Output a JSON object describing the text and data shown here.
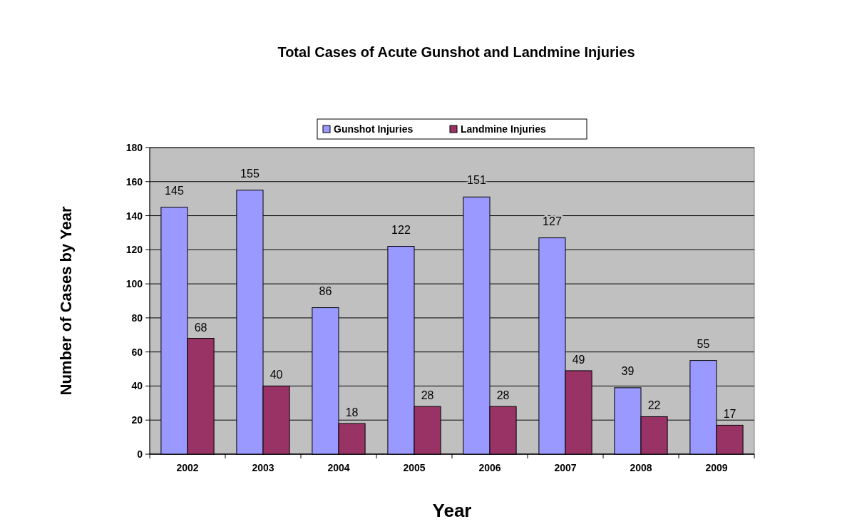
{
  "chart_data": {
    "type": "bar",
    "title": "Total Cases of Acute Gunshot and Landmine Injuries",
    "xlabel": "Year",
    "ylabel": "Number of Cases by Year",
    "categories": [
      "2002",
      "2003",
      "2004",
      "2005",
      "2006",
      "2007",
      "2008",
      "2009"
    ],
    "series": [
      {
        "name": "Gunshot Injuries",
        "color": "#9999ff",
        "values": [
          145,
          155,
          86,
          122,
          151,
          127,
          39,
          55
        ]
      },
      {
        "name": "Landmine Injuries",
        "color": "#993366",
        "values": [
          68,
          40,
          18,
          28,
          28,
          49,
          22,
          17
        ]
      }
    ],
    "ylim": [
      0,
      180
    ],
    "yticks": [
      0,
      20,
      40,
      60,
      80,
      100,
      120,
      140,
      160,
      180
    ],
    "grid": "y",
    "legend": "top",
    "data_labels": true
  }
}
